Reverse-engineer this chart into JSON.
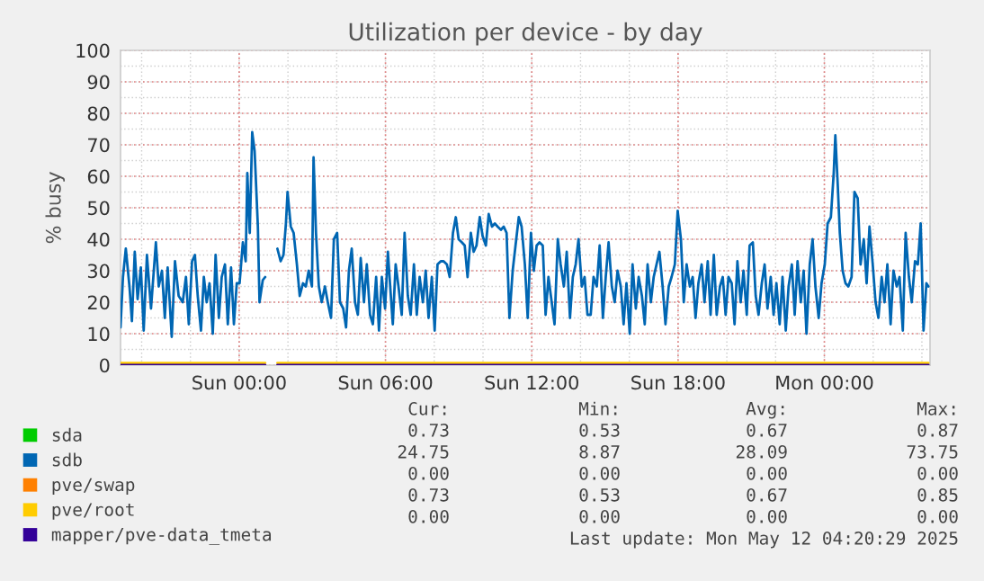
{
  "chart_data": {
    "type": "line",
    "title": "Utilization per device - by day",
    "ylabel": "% busy",
    "xlim": [
      "2025-05-10T19:08",
      "2025-05-12T04:20"
    ],
    "xticks": [
      {
        "value": "2025-05-11T00:00",
        "label": "Sun 00:00"
      },
      {
        "value": "2025-05-11T06:00",
        "label": "Sun 06:00"
      },
      {
        "value": "2025-05-11T12:00",
        "label": "Sun 12:00"
      },
      {
        "value": "2025-05-11T18:00",
        "label": "Sun 18:00"
      },
      {
        "value": "2025-05-12T00:00",
        "label": "Mon 00:00"
      }
    ],
    "ylim": [
      0,
      100
    ],
    "yticks": [
      0,
      10,
      20,
      30,
      40,
      50,
      60,
      70,
      80,
      90,
      100
    ],
    "grid": true,
    "legend": "bottom",
    "series": [
      {
        "name": "sda",
        "color": "#00cc00"
      },
      {
        "name": "sdb",
        "color": "#0066b3",
        "x": [
          "2025-05-10T19:08",
          "2025-05-10T19:14",
          "2025-05-10T19:21",
          "2025-05-10T19:30",
          "2025-05-10T19:36",
          "2025-05-10T19:43",
          "2025-05-10T19:50",
          "2025-05-10T19:58",
          "2025-05-10T20:05",
          "2025-05-10T20:13",
          "2025-05-10T20:23",
          "2025-05-10T20:35",
          "2025-05-10T20:42",
          "2025-05-10T20:50",
          "2025-05-10T20:57",
          "2025-05-10T21:04",
          "2025-05-10T21:14",
          "2025-05-10T21:22",
          "2025-05-10T21:31",
          "2025-05-10T21:41",
          "2025-05-10T21:49",
          "2025-05-10T21:56",
          "2025-05-10T22:04",
          "2025-05-10T22:11",
          "2025-05-10T22:18",
          "2025-05-10T22:26",
          "2025-05-10T22:33",
          "2025-05-10T22:40",
          "2025-05-10T22:47",
          "2025-05-10T22:55",
          "2025-05-10T23:02",
          "2025-05-10T23:10",
          "2025-05-10T23:17",
          "2025-05-10T23:25",
          "2025-05-10T23:32",
          "2025-05-10T23:40",
          "2025-05-10T23:47",
          "2025-05-10T23:54",
          "2025-05-11T00:01",
          "2025-05-11T00:09",
          "2025-05-11T00:16",
          "2025-05-11T00:20",
          "2025-05-11T00:26",
          "2025-05-11T00:32",
          "2025-05-11T00:38",
          "2025-05-11T00:46",
          "2025-05-11T00:50",
          "2025-05-11T00:58",
          "2025-05-11T01:04",
          "2025-05-11T01:18",
          "2025-05-11T01:34",
          "2025-05-11T01:42",
          "2025-05-11T01:49",
          "2025-05-11T01:55",
          "2025-05-11T01:59",
          "2025-05-11T02:07",
          "2025-05-11T02:14",
          "2025-05-11T02:22",
          "2025-05-11T02:29",
          "2025-05-11T02:37",
          "2025-05-11T02:44",
          "2025-05-11T02:51",
          "2025-05-11T02:59",
          "2025-05-11T03:03",
          "2025-05-11T03:09",
          "2025-05-11T03:16",
          "2025-05-11T03:23",
          "2025-05-11T03:31",
          "2025-05-11T03:38",
          "2025-05-11T03:46",
          "2025-05-11T03:53",
          "2025-05-11T04:01",
          "2025-05-11T04:08",
          "2025-05-11T04:16",
          "2025-05-11T04:23",
          "2025-05-11T04:30",
          "2025-05-11T04:37",
          "2025-05-11T04:45",
          "2025-05-11T04:52",
          "2025-05-11T04:59",
          "2025-05-11T05:07",
          "2025-05-11T05:14",
          "2025-05-11T05:22",
          "2025-05-11T05:29",
          "2025-05-11T05:37",
          "2025-05-11T05:44",
          "2025-05-11T05:51",
          "2025-05-11T05:59",
          "2025-05-11T06:06",
          "2025-05-11T06:10",
          "2025-05-11T06:18",
          "2025-05-11T06:25",
          "2025-05-11T06:32",
          "2025-05-11T06:40",
          "2025-05-11T06:47",
          "2025-05-11T06:55",
          "2025-05-11T07:02",
          "2025-05-11T07:10",
          "2025-05-11T07:17",
          "2025-05-11T07:24",
          "2025-05-11T07:32",
          "2025-05-11T07:39",
          "2025-05-11T07:46",
          "2025-05-11T07:54",
          "2025-05-11T08:01",
          "2025-05-11T08:08",
          "2025-05-11T08:16",
          "2025-05-11T08:23",
          "2025-05-11T08:31",
          "2025-05-11T08:38",
          "2025-05-11T08:46",
          "2025-05-11T08:53",
          "2025-05-11T09:00",
          "2025-05-11T09:08",
          "2025-05-11T09:15",
          "2025-05-11T09:22",
          "2025-05-11T09:30",
          "2025-05-11T09:37",
          "2025-05-11T09:44",
          "2025-05-11T09:52",
          "2025-05-11T09:59",
          "2025-05-11T10:07",
          "2025-05-11T10:14",
          "2025-05-11T10:22",
          "2025-05-11T10:29",
          "2025-05-11T10:36",
          "2025-05-11T10:44",
          "2025-05-11T10:51",
          "2025-05-11T10:58",
          "2025-05-11T11:05",
          "2025-05-11T11:13",
          "2025-05-11T11:20",
          "2025-05-11T11:28",
          "2025-05-11T11:35",
          "2025-05-11T11:43",
          "2025-05-11T11:50",
          "2025-05-11T11:58",
          "2025-05-11T12:05",
          "2025-05-11T12:12",
          "2025-05-11T12:19",
          "2025-05-11T12:27",
          "2025-05-11T12:34",
          "2025-05-11T12:41",
          "2025-05-11T12:49",
          "2025-05-11T12:56",
          "2025-05-11T13:04",
          "2025-05-11T13:11",
          "2025-05-11T13:19",
          "2025-05-11T13:26",
          "2025-05-11T13:34",
          "2025-05-11T13:41",
          "2025-05-11T13:48",
          "2025-05-11T13:55",
          "2025-05-11T14:03",
          "2025-05-11T14:10",
          "2025-05-11T14:17",
          "2025-05-11T14:25",
          "2025-05-11T14:32",
          "2025-05-11T14:40",
          "2025-05-11T14:47",
          "2025-05-11T14:55",
          "2025-05-11T15:02",
          "2025-05-11T15:09",
          "2025-05-11T15:17",
          "2025-05-11T15:24",
          "2025-05-11T15:31",
          "2025-05-11T15:39",
          "2025-05-11T15:46",
          "2025-05-11T15:53",
          "2025-05-11T16:01",
          "2025-05-11T16:08",
          "2025-05-11T16:16",
          "2025-05-11T16:23",
          "2025-05-11T16:31",
          "2025-05-11T16:38",
          "2025-05-11T16:45",
          "2025-05-11T16:53",
          "2025-05-11T17:00",
          "2025-05-11T17:07",
          "2025-05-11T17:14",
          "2025-05-11T17:22",
          "2025-05-11T17:29",
          "2025-05-11T17:37",
          "2025-05-11T17:44",
          "2025-05-11T17:52",
          "2025-05-11T17:59",
          "2025-05-11T18:07",
          "2025-05-11T18:14",
          "2025-05-11T18:21",
          "2025-05-11T18:29",
          "2025-05-11T18:36",
          "2025-05-11T18:43",
          "2025-05-11T18:50",
          "2025-05-11T18:58",
          "2025-05-11T19:05",
          "2025-05-11T19:13",
          "2025-05-11T19:20",
          "2025-05-11T19:28",
          "2025-05-11T19:35",
          "2025-05-11T19:43",
          "2025-05-11T19:50",
          "2025-05-11T19:57",
          "2025-05-11T20:04",
          "2025-05-11T20:12",
          "2025-05-11T20:19",
          "2025-05-11T20:26",
          "2025-05-11T20:34",
          "2025-05-11T20:41",
          "2025-05-11T20:49",
          "2025-05-11T20:56",
          "2025-05-11T21:04",
          "2025-05-11T21:11",
          "2025-05-11T21:18",
          "2025-05-11T21:26",
          "2025-05-11T21:33",
          "2025-05-11T21:40",
          "2025-05-11T21:48",
          "2025-05-11T21:55",
          "2025-05-11T22:02",
          "2025-05-11T22:10",
          "2025-05-11T22:17",
          "2025-05-11T22:25",
          "2025-05-11T22:32",
          "2025-05-11T22:40",
          "2025-05-11T22:47",
          "2025-05-11T22:54",
          "2025-05-11T23:02",
          "2025-05-11T23:09",
          "2025-05-11T23:16",
          "2025-05-11T23:24",
          "2025-05-11T23:31",
          "2025-05-11T23:38",
          "2025-05-11T23:46",
          "2025-05-11T23:53",
          "2025-05-12T00:01",
          "2025-05-12T00:08",
          "2025-05-12T00:16",
          "2025-05-12T00:23",
          "2025-05-12T00:27",
          "2025-05-12T00:33",
          "2025-05-12T00:38",
          "2025-05-12T00:45",
          "2025-05-12T00:52",
          "2025-05-12T00:59",
          "2025-05-12T01:07",
          "2025-05-12T01:14",
          "2025-05-12T01:22",
          "2025-05-12T01:29",
          "2025-05-12T01:37",
          "2025-05-12T01:44",
          "2025-05-12T01:51",
          "2025-05-12T01:59",
          "2025-05-12T02:06",
          "2025-05-12T02:13",
          "2025-05-12T02:21",
          "2025-05-12T02:28",
          "2025-05-12T02:35",
          "2025-05-12T02:43",
          "2025-05-12T02:50",
          "2025-05-12T02:58",
          "2025-05-12T03:05",
          "2025-05-12T03:13",
          "2025-05-12T03:20",
          "2025-05-12T03:28",
          "2025-05-12T03:35",
          "2025-05-12T03:43",
          "2025-05-12T03:50",
          "2025-05-12T03:57",
          "2025-05-12T04:04",
          "2025-05-12T04:11",
          "2025-05-12T04:16"
        ],
        "values": [
          12,
          28,
          37,
          25,
          14,
          36,
          21,
          31,
          11,
          35,
          18,
          39,
          25,
          30,
          15,
          31,
          9,
          33,
          22,
          20,
          28,
          13,
          33,
          35,
          22,
          11,
          28,
          20,
          26,
          10,
          35,
          15,
          28,
          32,
          13,
          31,
          13,
          26,
          26,
          39,
          33,
          61,
          42,
          74,
          68,
          44,
          20,
          27,
          28,
          null,
          37,
          33,
          35,
          45,
          55,
          44,
          42,
          32,
          22,
          26,
          25,
          30,
          25,
          66,
          42,
          25,
          20,
          25,
          20,
          15,
          40,
          42,
          20,
          18,
          12,
          30,
          37,
          20,
          16,
          34,
          20,
          32,
          16,
          13,
          28,
          11,
          28,
          18,
          36,
          28,
          13,
          32,
          25,
          16,
          42,
          22,
          16,
          32,
          16,
          28,
          20,
          30,
          15,
          28,
          11,
          32,
          33,
          33,
          32,
          28,
          42,
          47,
          40,
          39,
          38,
          28,
          42,
          36,
          38,
          47,
          41,
          38,
          48,
          44,
          45,
          44,
          43,
          44,
          42,
          15,
          30,
          38,
          47,
          44,
          32,
          15,
          42,
          30,
          38,
          39,
          38,
          16,
          28,
          20,
          13,
          40,
          32,
          25,
          36,
          15,
          28,
          32,
          40,
          25,
          28,
          16,
          16,
          28,
          25,
          38,
          15,
          28,
          39,
          25,
          20,
          30,
          25,
          13,
          26,
          10,
          32,
          18,
          28,
          22,
          13,
          32,
          20,
          28,
          32,
          36,
          25,
          13,
          25,
          28,
          32,
          49,
          40,
          20,
          32,
          25,
          28,
          15,
          26,
          32,
          20,
          33,
          16,
          35,
          16,
          25,
          28,
          16,
          28,
          26,
          13,
          33,
          20,
          30,
          16,
          38,
          39,
          22,
          16,
          26,
          32,
          18,
          28,
          16,
          26,
          13,
          28,
          11,
          25,
          32,
          16,
          33,
          20,
          30,
          10,
          32,
          40,
          25,
          15,
          26,
          32,
          45,
          47,
          61,
          73,
          57,
          42,
          30,
          26,
          25,
          28,
          55,
          53,
          32,
          40,
          26,
          44,
          32,
          20,
          15,
          28,
          20,
          32,
          13,
          30,
          25,
          28,
          11,
          42,
          28,
          20,
          33,
          32,
          45,
          11,
          26,
          25
        ]
      },
      {
        "name": "pve/swap",
        "color": "#ff8000"
      },
      {
        "name": "pve/root",
        "color": "#ffcc00",
        "x": [
          "2025-05-10T19:08",
          "2025-05-11T01:04",
          "2025-05-11T01:18",
          "2025-05-11T01:34",
          "2025-05-12T04:16"
        ],
        "values": [
          0.7,
          0.7,
          null,
          0.7,
          0.7
        ]
      },
      {
        "name": "mapper/pve-data_tmeta",
        "color": "#330099",
        "x": [
          "2025-05-10T19:08",
          "2025-05-11T01:04",
          "2025-05-11T01:18",
          "2025-05-11T01:34",
          "2025-05-12T04:16"
        ],
        "values": [
          0,
          0,
          null,
          0,
          0
        ]
      }
    ],
    "annotations": [
      "Cur:",
      "Min:",
      "Avg:",
      "Max:",
      "0.73",
      "0.53",
      "0.67",
      "0.87",
      "24.75",
      "8.87",
      "28.09",
      "73.75",
      "0.00",
      "0.00",
      "0.00",
      "0.00",
      "0.73",
      "0.53",
      "0.67",
      "0.85",
      "0.00",
      "0.00",
      "0.00",
      "0.00",
      "Last update: Mon May 12 04:20:29 2025"
    ]
  }
}
